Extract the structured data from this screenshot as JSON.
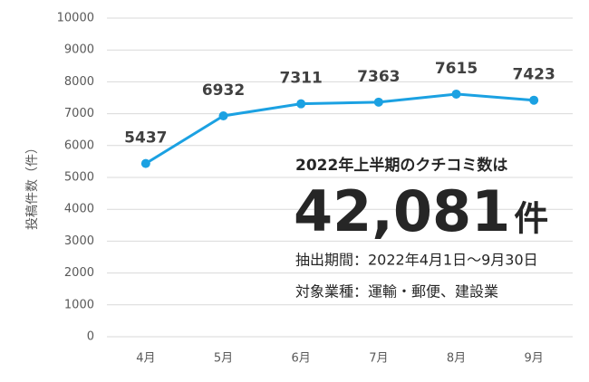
{
  "chart_data": {
    "type": "line",
    "categories": [
      "4月",
      "5月",
      "6月",
      "7月",
      "8月",
      "9月"
    ],
    "values": [
      5437,
      6932,
      7311,
      7363,
      7615,
      7423
    ],
    "color": "#1ba1e2",
    "ylabel": "投稿件数（件）",
    "ylim": [
      0,
      10000
    ],
    "yticks": [
      0,
      1000,
      2000,
      3000,
      4000,
      5000,
      6000,
      7000,
      8000,
      9000,
      10000
    ],
    "grid": true,
    "annotations": [
      "2022年上半期のクチコミ数は",
      "42,081",
      "件",
      "抽出期間：2022年4月1日～9月30日",
      "対象業種：運輸・郵便、建設業"
    ]
  }
}
